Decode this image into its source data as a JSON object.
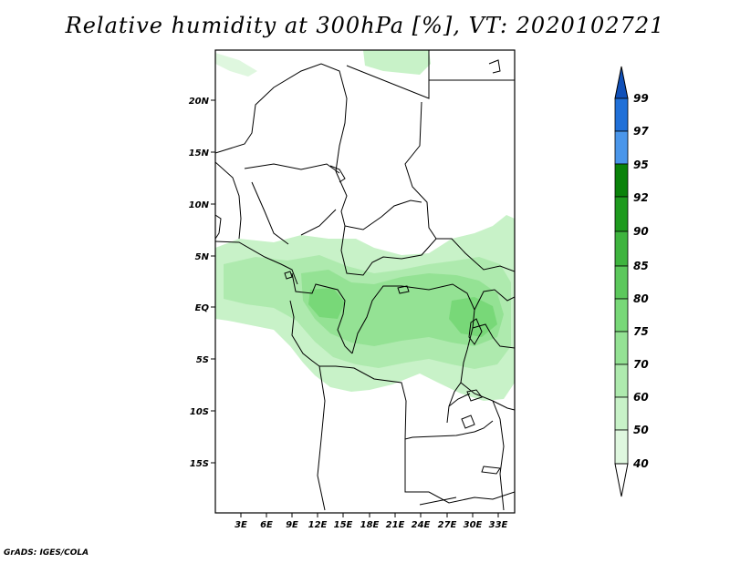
{
  "map": {
    "title": "Relative humidity at 300hPa [%], VT: 2020102721",
    "variable": "Relative humidity",
    "level": "300hPa",
    "units": "%",
    "valid_time": "2020102721",
    "credit": "GrADS: IGES/COLA",
    "lat_labels": [
      "20N",
      "15N",
      "10N",
      "5N",
      "EQ",
      "5S",
      "10S",
      "15S"
    ],
    "lon_labels": [
      "3E",
      "6E",
      "9E",
      "12E",
      "15E",
      "18E",
      "21E",
      "24E",
      "27E",
      "30E",
      "33E"
    ]
  },
  "colorbar": {
    "levels": [
      "40",
      "50",
      "60",
      "70",
      "75",
      "80",
      "85",
      "90",
      "92",
      "95",
      "97",
      "99"
    ],
    "colors": [
      "#f0fbf0",
      "#dff7df",
      "#c8f2c8",
      "#aeeaae",
      "#94e294",
      "#78d878",
      "#5cc85c",
      "#3eb43e",
      "#1e9a1e",
      "#0a820a",
      "#4a96ea",
      "#2070d8",
      "#1050b8"
    ]
  }
}
